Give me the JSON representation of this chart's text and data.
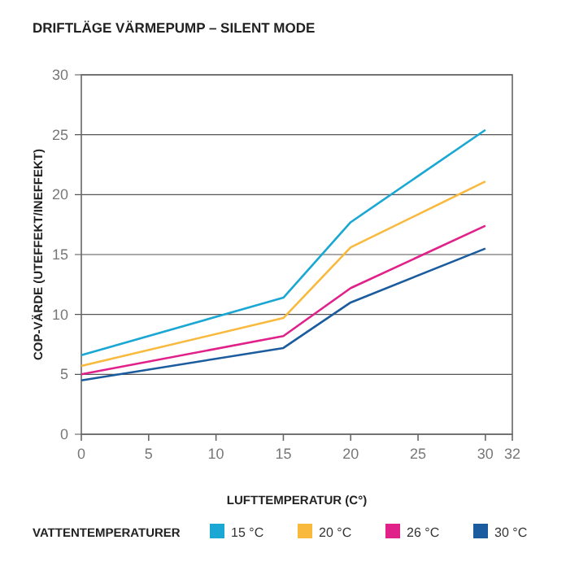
{
  "chart_data": {
    "type": "line",
    "title": "DRIFTLÄGE VÄRMEPUMP – SILENT MODE",
    "xlabel": "LUFTTEMPERATUR (C°)",
    "ylabel": "COP-VÄRDE (UTEFFEKT/INEFFEKT)",
    "legend_title": "VATTENTEMPERATURER",
    "x": [
      0,
      15,
      20,
      30
    ],
    "series": [
      {
        "name": "15 °C",
        "color": "#1aa7d4",
        "values": [
          6.6,
          11.4,
          17.7,
          25.4
        ]
      },
      {
        "name": "20 °C",
        "color": "#f9b93d",
        "values": [
          5.7,
          9.7,
          15.6,
          21.1
        ]
      },
      {
        "name": "26 °C",
        "color": "#e0218a",
        "values": [
          5.0,
          8.2,
          12.2,
          17.4
        ]
      },
      {
        "name": "30 °C",
        "color": "#1a5c9e",
        "values": [
          4.5,
          7.2,
          11.0,
          15.5
        ]
      }
    ],
    "xlim": [
      0,
      32
    ],
    "xticks": [
      0,
      5,
      10,
      15,
      20,
      25,
      30,
      32
    ],
    "ylim": [
      0,
      30
    ],
    "yticks": [
      0,
      5,
      10,
      15,
      20,
      25,
      30
    ],
    "grid": "y",
    "legend": "bottom",
    "marker": "none",
    "line_style": "solid"
  }
}
